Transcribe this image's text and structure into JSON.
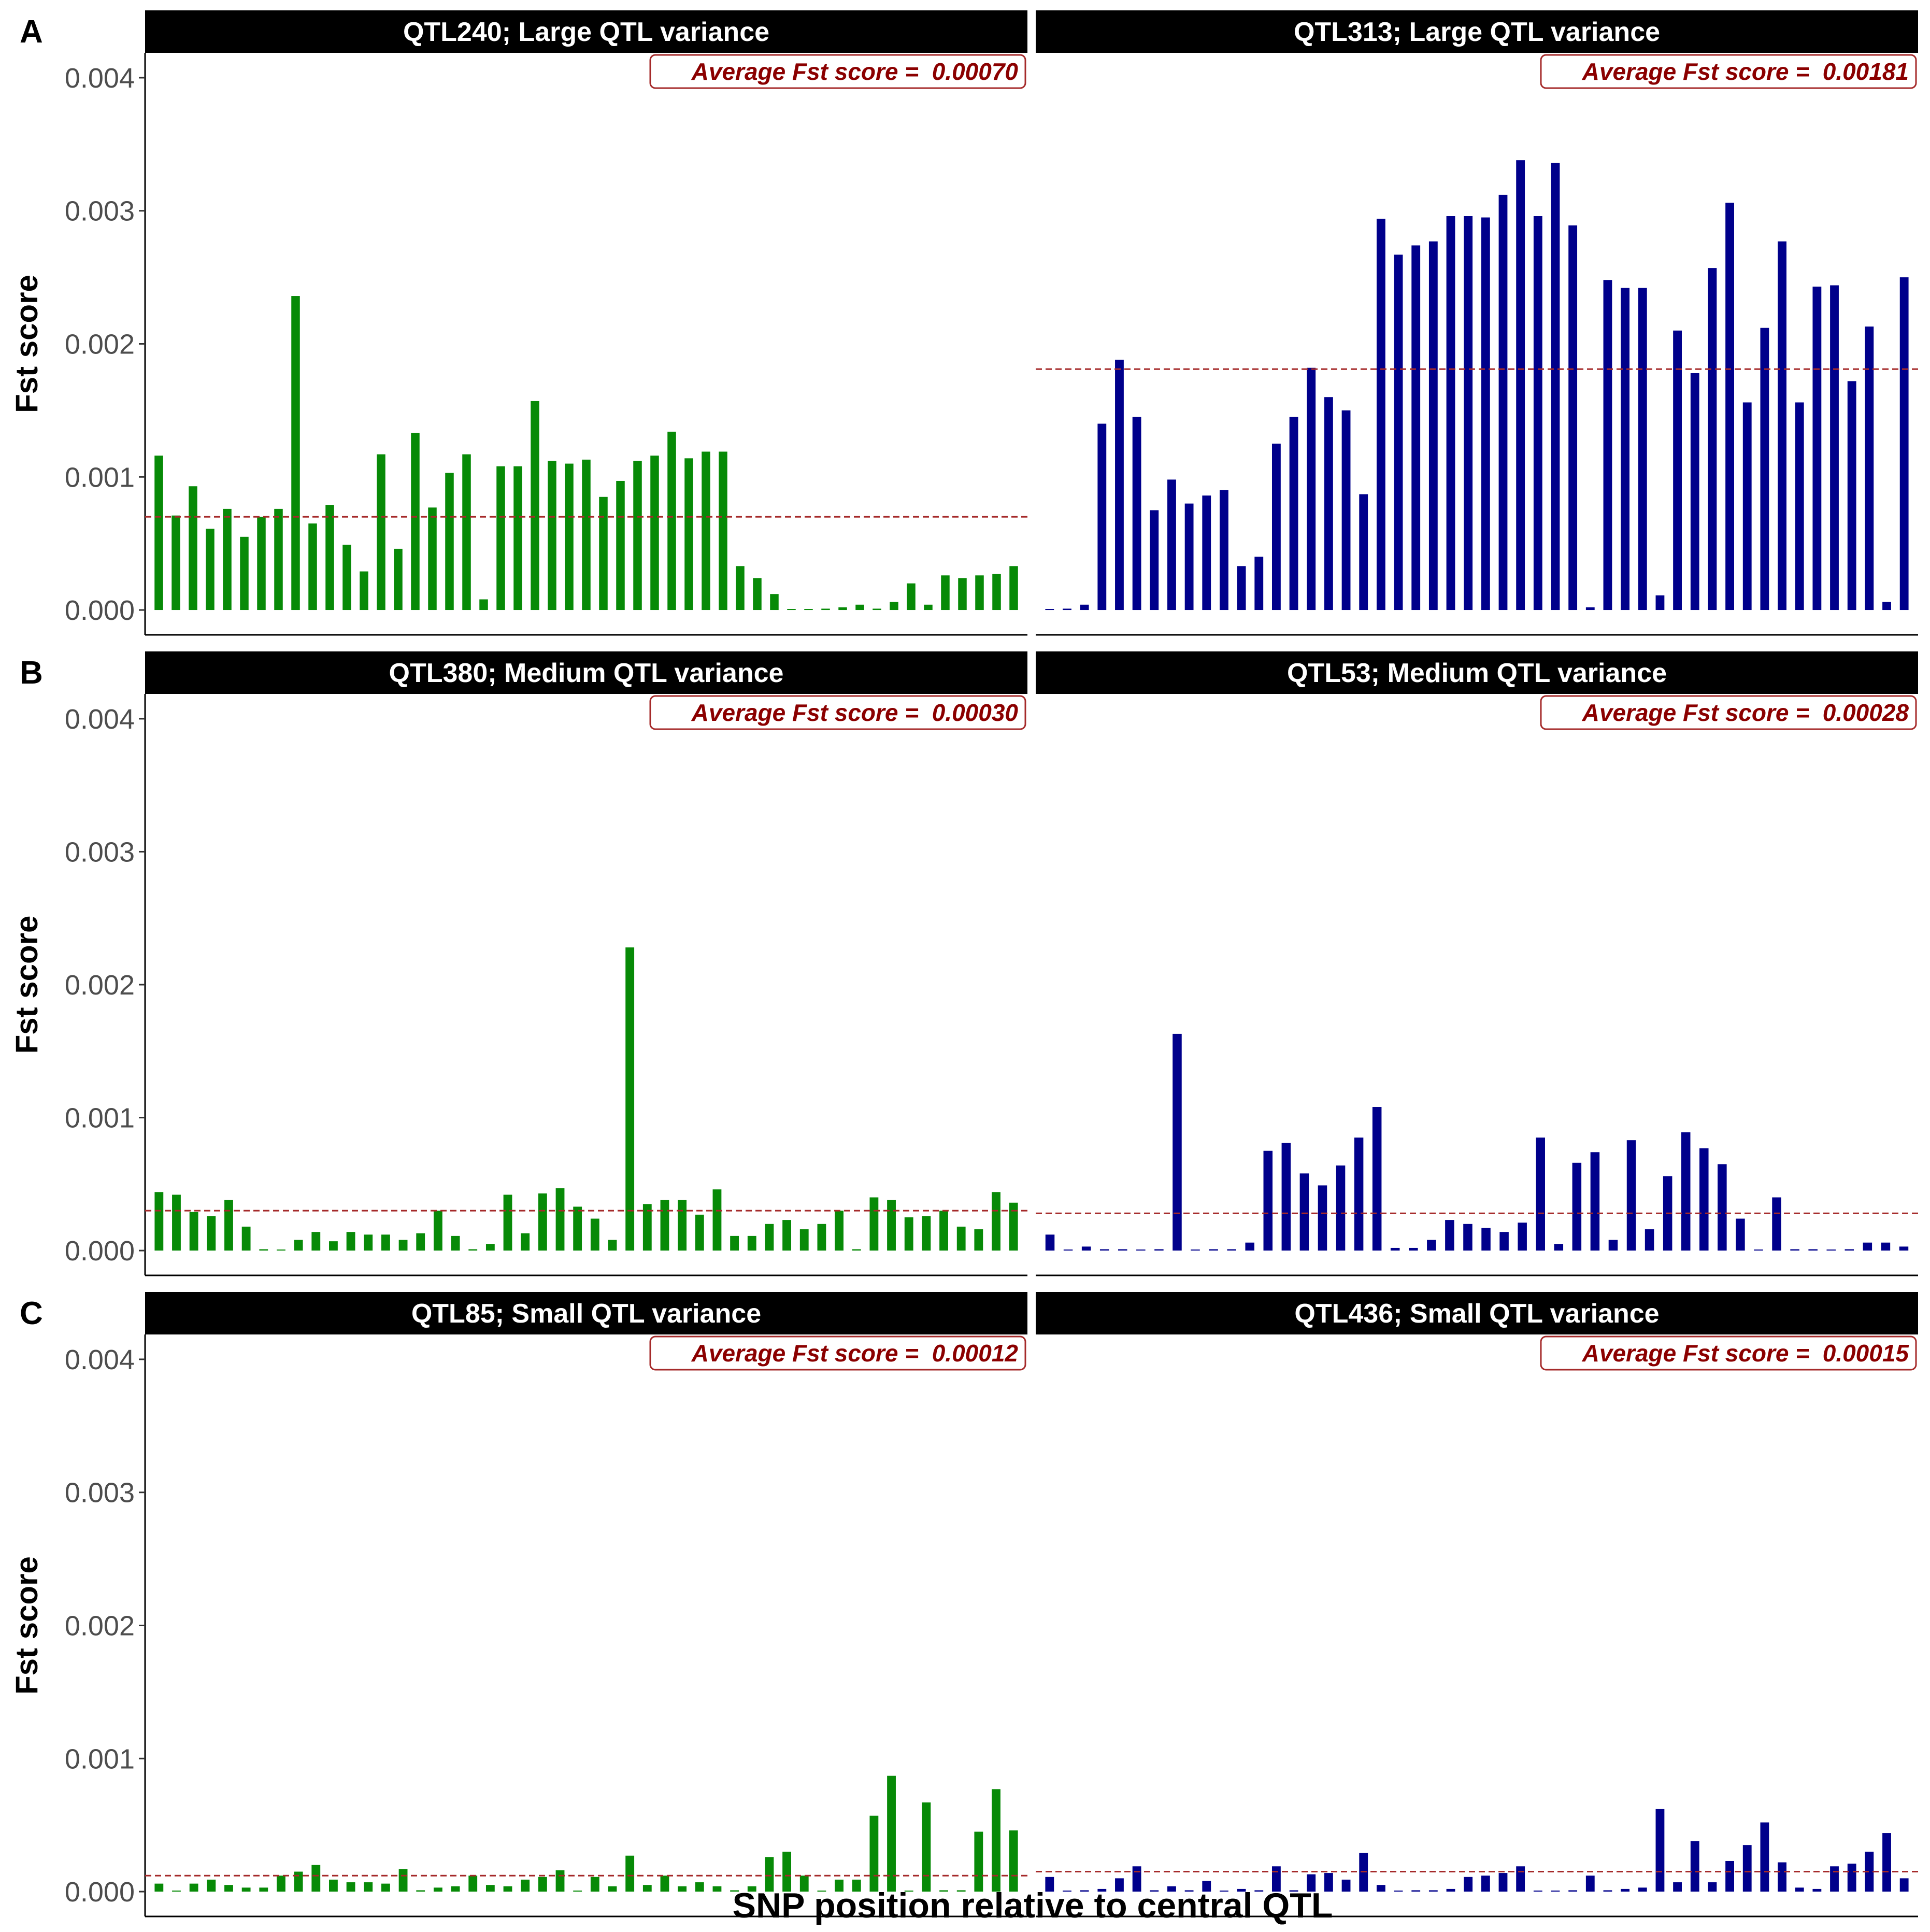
{
  "figure": {
    "xlabel": "SNP position relative to central QTL",
    "ylabel": "Fst score",
    "colors": {
      "green": "#078a07",
      "blue": "#00008b",
      "avg_line": "#a52a2a",
      "label_text": "#8b0000",
      "strip_bg": "#000000"
    }
  },
  "chart_data": [
    {
      "type": "bar",
      "row_label": "A",
      "title": "QTL240; Large QTL variance",
      "avg_text": "Average Fst score =  0.00070",
      "avg": 0.0007,
      "color": "green",
      "ylim": [
        -0.0002,
        0.0042
      ],
      "yticks": [
        "0.000",
        "0.001",
        "0.002",
        "0.003",
        "0.004"
      ],
      "values": [
        0.00116,
        0.00071,
        0.00093,
        0.00061,
        0.00076,
        0.00055,
        0.0007,
        0.00076,
        0.00236,
        0.00065,
        0.00079,
        0.00049,
        0.00029,
        0.00117,
        0.00046,
        0.00133,
        0.00077,
        0.00103,
        0.00117,
        8e-05,
        0.00108,
        0.00108,
        0.00157,
        0.00112,
        0.0011,
        0.00113,
        0.00085,
        0.00097,
        0.00112,
        0.00116,
        0.00134,
        0.00114,
        0.00119,
        0.00119,
        0.00033,
        0.00024,
        0.00012,
        0.0,
        0.0,
        1e-05,
        2e-05,
        4e-05,
        1e-05,
        6e-05,
        0.0002,
        4e-05,
        0.00026,
        0.00024,
        0.00026,
        0.00027,
        0.00033
      ]
    },
    {
      "type": "bar",
      "row_label": "",
      "title": "QTL313; Large QTL variance",
      "avg_text": "Average Fst score =  0.00181",
      "avg": 0.00181,
      "color": "blue",
      "ylim": [
        -0.0002,
        0.0042
      ],
      "yticks": [],
      "values": [
        0.0,
        1e-05,
        4e-05,
        0.0014,
        0.00188,
        0.00145,
        0.00075,
        0.00098,
        0.0008,
        0.00086,
        0.0009,
        0.00033,
        0.0004,
        0.00125,
        0.00145,
        0.00182,
        0.0016,
        0.0015,
        0.00087,
        0.00294,
        0.00267,
        0.00274,
        0.00277,
        0.00296,
        0.00296,
        0.00295,
        0.00312,
        0.00338,
        0.00296,
        0.00336,
        0.00289,
        2e-05,
        0.00248,
        0.00242,
        0.00242,
        0.00011,
        0.0021,
        0.00178,
        0.00257,
        0.00306,
        0.00156,
        0.00212,
        0.00277,
        0.00156,
        0.00243,
        0.00244,
        0.00172,
        0.00213,
        6e-05,
        0.0025
      ]
    },
    {
      "type": "bar",
      "row_label": "B",
      "title": "QTL380; Medium QTL variance",
      "avg_text": "Average Fst score =  0.00030",
      "avg": 0.0003,
      "color": "green",
      "ylim": [
        -0.0002,
        0.0042
      ],
      "yticks": [
        "0.000",
        "0.001",
        "0.002",
        "0.003",
        "0.004"
      ],
      "values": [
        0.00044,
        0.00042,
        0.00029,
        0.00026,
        0.00038,
        0.00018,
        1e-05,
        0.0,
        8e-05,
        0.00014,
        7e-05,
        0.00014,
        0.00012,
        0.00012,
        8e-05,
        0.00013,
        0.0003,
        0.00011,
        1e-05,
        5e-05,
        0.00042,
        0.00013,
        0.00043,
        0.00047,
        0.00033,
        0.00024,
        8e-05,
        0.00228,
        0.00035,
        0.00038,
        0.00038,
        0.00027,
        0.00046,
        0.00011,
        0.00011,
        0.0002,
        0.00023,
        0.00016,
        0.0002,
        0.0003,
        1e-05,
        0.0004,
        0.00038,
        0.00025,
        0.00026,
        0.0003,
        0.00018,
        0.00016,
        0.00044,
        0.00036
      ]
    },
    {
      "type": "bar",
      "row_label": "",
      "title": "QTL53; Medium QTL variance",
      "avg_text": "Average Fst score =  0.00028",
      "avg": 0.00028,
      "color": "blue",
      "ylim": [
        -0.0002,
        0.0042
      ],
      "yticks": [],
      "values": [
        0.00012,
        0.0,
        3e-05,
        1e-05,
        1e-05,
        0.0,
        1e-05,
        0.00163,
        0.0,
        1e-05,
        1e-05,
        6e-05,
        0.00075,
        0.00081,
        0.00058,
        0.00049,
        0.00064,
        0.00085,
        0.00108,
        2e-05,
        2e-05,
        8e-05,
        0.00023,
        0.0002,
        0.00017,
        0.00014,
        0.00021,
        0.00085,
        5e-05,
        0.00066,
        0.00074,
        8e-05,
        0.00083,
        0.00016,
        0.00056,
        0.00089,
        0.00077,
        0.00065,
        0.00024,
        0.0,
        0.0004,
        1e-05,
        1e-05,
        0.0,
        1e-05,
        6e-05,
        6e-05,
        3e-05
      ]
    },
    {
      "type": "bar",
      "row_label": "C",
      "title": "QTL85; Small QTL variance",
      "avg_text": "Average Fst score =  0.00012",
      "avg": 0.00012,
      "color": "green",
      "ylim": [
        -0.0002,
        0.0042
      ],
      "yticks": [
        "0.000",
        "0.001",
        "0.002",
        "0.003",
        "0.004"
      ],
      "values": [
        6e-05,
        0.0,
        6e-05,
        9e-05,
        5e-05,
        3e-05,
        3e-05,
        0.00012,
        0.00015,
        0.0002,
        9e-05,
        7e-05,
        7e-05,
        6e-05,
        0.00017,
        1e-05,
        3e-05,
        4e-05,
        0.00012,
        5e-05,
        4e-05,
        9e-05,
        0.00011,
        0.00016,
        0.0,
        0.00011,
        4e-05,
        0.00027,
        5e-05,
        0.00012,
        4e-05,
        7e-05,
        4e-05,
        1e-05,
        4e-05,
        0.00026,
        0.0003,
        0.00012,
        0.0,
        9e-05,
        9e-05,
        0.00057,
        0.00087,
        0.0,
        0.00067,
        1e-05,
        1e-05,
        0.00045,
        0.00077,
        0.00046
      ]
    },
    {
      "type": "bar",
      "row_label": "",
      "title": "QTL436; Small QTL variance",
      "avg_text": "Average Fst score =  0.00015",
      "avg": 0.00015,
      "color": "blue",
      "ylim": [
        -0.0002,
        0.0042
      ],
      "yticks": [],
      "values": [
        0.00011,
        0.0,
        1e-05,
        2e-05,
        0.0001,
        0.00019,
        1e-05,
        4e-05,
        1e-05,
        8e-05,
        0.0,
        2e-05,
        1e-05,
        0.00019,
        1e-05,
        0.00013,
        0.00014,
        9e-05,
        0.00029,
        5e-05,
        0.0,
        1e-05,
        1e-05,
        2e-05,
        0.00011,
        0.00012,
        0.00014,
        0.00019,
        0.0,
        0.0,
        1e-05,
        0.00012,
        1e-05,
        2e-05,
        3e-05,
        0.00062,
        7e-05,
        0.00038,
        7e-05,
        0.00023,
        0.00035,
        0.00052,
        0.00022,
        3e-05,
        2e-05,
        0.00019,
        0.00021,
        0.0003,
        0.00044,
        0.0001
      ]
    }
  ]
}
